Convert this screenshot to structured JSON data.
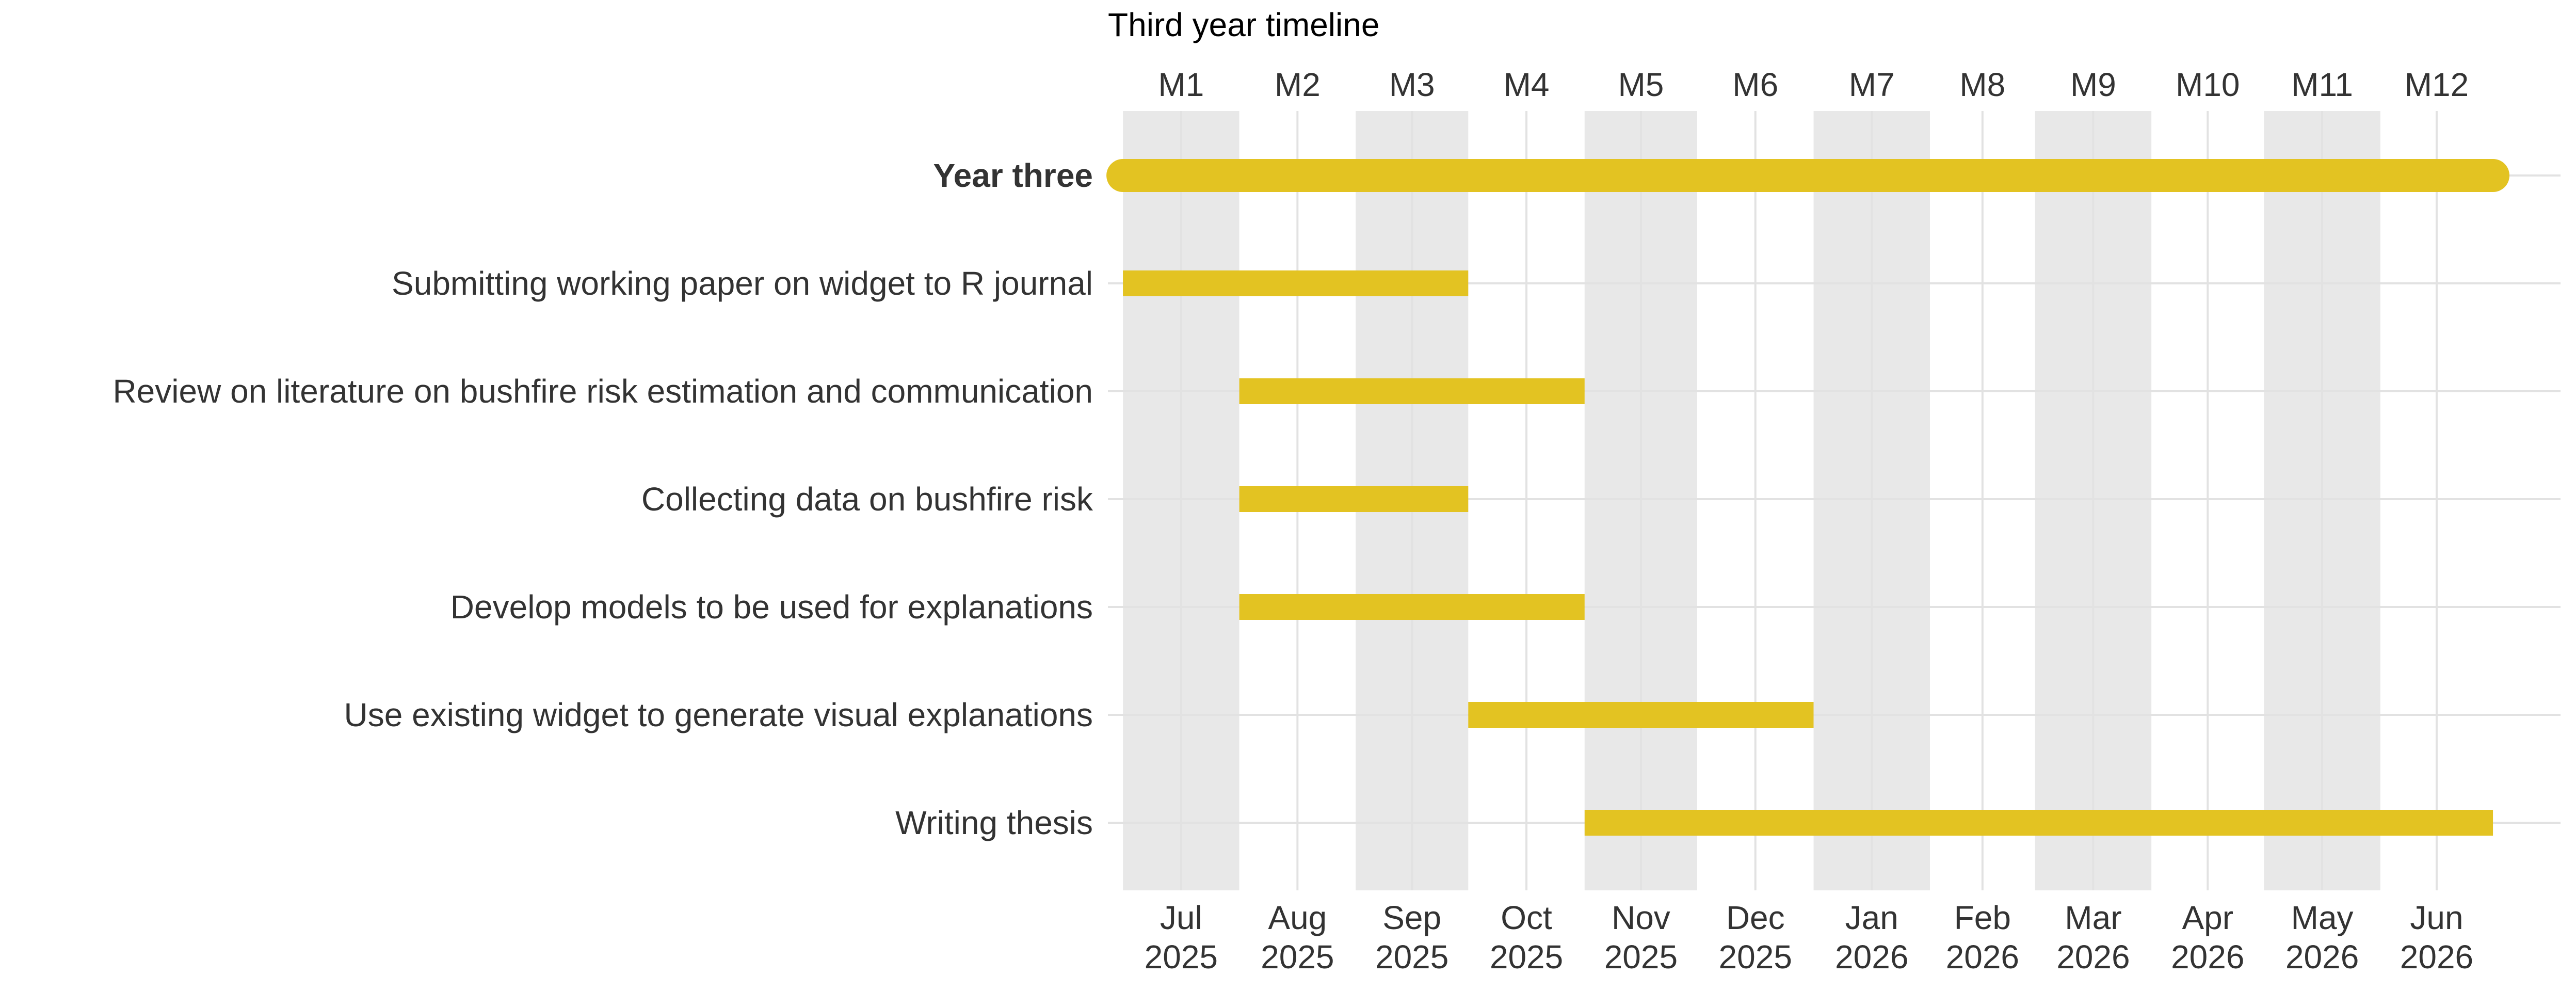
{
  "chart_data": {
    "type": "gantt",
    "title": "Third year timeline",
    "xlabel": "",
    "ylabel": "",
    "grid": true,
    "colors": {
      "bar": "#E3C322",
      "band": "#E8E8E8",
      "grid": "#E2E2E2",
      "text": "#333333"
    },
    "months": [
      {
        "top": "M1",
        "bottom": [
          "Jul",
          "2025"
        ]
      },
      {
        "top": "M2",
        "bottom": [
          "Aug",
          "2025"
        ]
      },
      {
        "top": "M3",
        "bottom": [
          "Sep",
          "2025"
        ]
      },
      {
        "top": "M4",
        "bottom": [
          "Oct",
          "2025"
        ]
      },
      {
        "top": "M5",
        "bottom": [
          "Nov",
          "2025"
        ]
      },
      {
        "top": "M6",
        "bottom": [
          "Dec",
          "2025"
        ]
      },
      {
        "top": "M7",
        "bottom": [
          "Jan",
          "2026"
        ]
      },
      {
        "top": "M8",
        "bottom": [
          "Feb",
          "2026"
        ]
      },
      {
        "top": "M9",
        "bottom": [
          "Mar",
          "2026"
        ]
      },
      {
        "top": "M10",
        "bottom": [
          "Apr",
          "2026"
        ]
      },
      {
        "top": "M11",
        "bottom": [
          "May",
          "2026"
        ]
      },
      {
        "top": "M12",
        "bottom": [
          "Jun",
          "2026"
        ]
      }
    ],
    "x_range": [
      "2025-06-27",
      "2026-07-19"
    ],
    "shaded_months": [
      1,
      3,
      5,
      7,
      9,
      11
    ],
    "tasks": [
      {
        "name": "Year three",
        "start": "2025-07-01",
        "end": "2026-06-30",
        "bold": true
      },
      {
        "name": "Submitting working paper on widget to R journal",
        "start": "2025-07-01",
        "end": "2025-09-30",
        "bold": false
      },
      {
        "name": "Review on literature on bushfire risk estimation and communication",
        "start": "2025-08-01",
        "end": "2025-10-31",
        "bold": false
      },
      {
        "name": "Collecting data on bushfire risk",
        "start": "2025-08-01",
        "end": "2025-09-30",
        "bold": false
      },
      {
        "name": "Develop models to be used for explanations",
        "start": "2025-08-01",
        "end": "2025-10-31",
        "bold": false
      },
      {
        "name": "Use existing widget to generate visual explanations",
        "start": "2025-10-01",
        "end": "2025-12-31",
        "bold": false
      },
      {
        "name": "Writing thesis",
        "start": "2025-11-01",
        "end": "2026-06-30",
        "bold": false
      }
    ]
  }
}
